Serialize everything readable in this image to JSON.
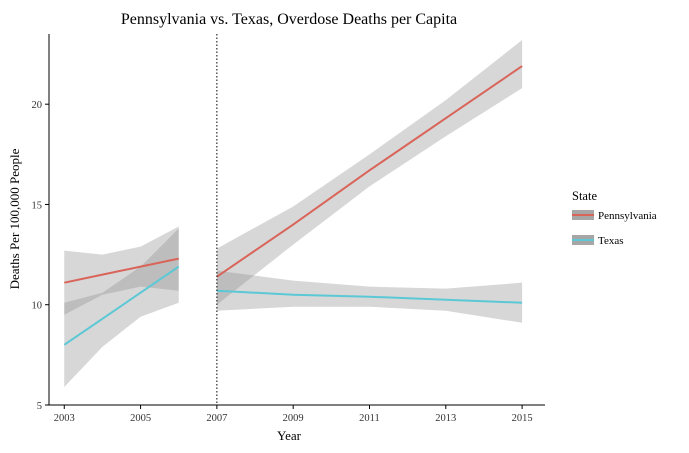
{
  "chart_data": {
    "type": "line",
    "title": "Pennsylvania vs. Texas, Overdose Deaths per Capita",
    "xlabel": "Year",
    "ylabel": "Deaths Per 100,000 People",
    "xlim": [
      2002.6,
      2015.6
    ],
    "ylim": [
      5,
      23.5
    ],
    "x_ticks": [
      2003,
      2005,
      2007,
      2009,
      2011,
      2013,
      2015
    ],
    "y_ticks": [
      5,
      10,
      15,
      20
    ],
    "reference_line": {
      "x": 2007,
      "style": "dotted"
    },
    "legend": {
      "title": "State",
      "position": "right"
    },
    "grid": false,
    "series": [
      {
        "name": "Pennsylvania",
        "color": "#d96459",
        "segments": [
          {
            "x": [
              2003,
              2004,
              2005,
              2006
            ],
            "y": [
              11.1,
              11.5,
              11.9,
              12.3
            ],
            "lower": [
              9.5,
              10.5,
              10.9,
              10.7
            ],
            "upper": [
              12.7,
              12.5,
              12.9,
              13.9
            ]
          },
          {
            "x": [
              2007,
              2009,
              2011,
              2013,
              2015
            ],
            "y": [
              11.4,
              14.0,
              16.7,
              19.3,
              21.9
            ],
            "lower": [
              10.0,
              13.0,
              15.9,
              18.4,
              20.8
            ],
            "upper": [
              12.8,
              14.9,
              17.5,
              20.2,
              23.2
            ]
          }
        ]
      },
      {
        "name": "Texas",
        "color": "#5bc8d6",
        "segments": [
          {
            "x": [
              2003,
              2004,
              2005,
              2006
            ],
            "y": [
              8.0,
              9.3,
              10.6,
              11.9
            ],
            "lower": [
              5.9,
              7.9,
              9.4,
              10.1
            ],
            "upper": [
              10.1,
              10.6,
              11.9,
              13.8
            ]
          },
          {
            "x": [
              2007,
              2009,
              2011,
              2013,
              2015
            ],
            "y": [
              10.7,
              10.5,
              10.4,
              10.25,
              10.1
            ],
            "lower": [
              9.7,
              9.9,
              9.9,
              9.7,
              9.1
            ],
            "upper": [
              11.7,
              11.2,
              10.9,
              10.8,
              11.1
            ]
          }
        ]
      }
    ]
  }
}
